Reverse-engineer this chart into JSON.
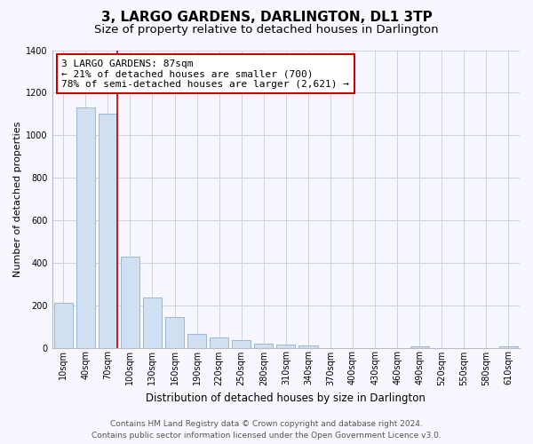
{
  "title": "3, LARGO GARDENS, DARLINGTON, DL1 3TP",
  "subtitle": "Size of property relative to detached houses in Darlington",
  "xlabel": "Distribution of detached houses by size in Darlington",
  "ylabel": "Number of detached properties",
  "bar_labels": [
    "10sqm",
    "40sqm",
    "70sqm",
    "100sqm",
    "130sqm",
    "160sqm",
    "190sqm",
    "220sqm",
    "250sqm",
    "280sqm",
    "310sqm",
    "340sqm",
    "370sqm",
    "400sqm",
    "430sqm",
    "460sqm",
    "490sqm",
    "520sqm",
    "550sqm",
    "580sqm",
    "610sqm"
  ],
  "bar_values": [
    210,
    1130,
    1100,
    430,
    235,
    145,
    65,
    50,
    35,
    20,
    15,
    10,
    0,
    0,
    0,
    0,
    5,
    0,
    0,
    0,
    5
  ],
  "bar_color": "#d0e0f0",
  "bar_edge_color": "#9ab8d8",
  "vline_x_idx": 2,
  "vline_color": "#bb0000",
  "annotation_line1": "3 LARGO GARDENS: 87sqm",
  "annotation_line2": "← 21% of detached houses are smaller (700)",
  "annotation_line3": "78% of semi-detached houses are larger (2,621) →",
  "annotation_box_color": "#ffffff",
  "annotation_box_edge": "#cc0000",
  "ylim": [
    0,
    1400
  ],
  "yticks": [
    0,
    200,
    400,
    600,
    800,
    1000,
    1200,
    1400
  ],
  "footer_line1": "Contains HM Land Registry data © Crown copyright and database right 2024.",
  "footer_line2": "Contains public sector information licensed under the Open Government Licence v3.0.",
  "bg_color": "#f7f7ff",
  "grid_color": "#c8d4e4",
  "title_fontsize": 11,
  "subtitle_fontsize": 9.5,
  "axis_label_fontsize": 8.5,
  "ylabel_fontsize": 8,
  "tick_fontsize": 7,
  "annotation_fontsize": 8,
  "footer_fontsize": 6.5
}
